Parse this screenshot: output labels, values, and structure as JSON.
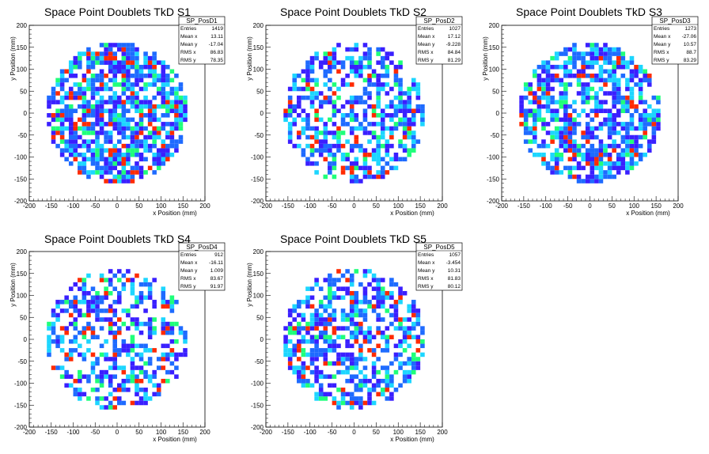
{
  "chart_data": [
    {
      "type": "heatmap",
      "title": "Space Point Doublets TkD S1",
      "xlabel": "x Position (mm)",
      "ylabel": "y Position (mm)",
      "xlim": [
        -200,
        200
      ],
      "ylim": [
        -200,
        200
      ],
      "xticks": [
        -200,
        -150,
        -100,
        -50,
        0,
        50,
        100,
        150,
        200
      ],
      "yticks": [
        -200,
        -150,
        -100,
        -50,
        0,
        50,
        100,
        150,
        200
      ],
      "stats": {
        "name": "SP_PosD1",
        "rows": [
          {
            "label": "Entries",
            "value": "1419"
          },
          {
            "label": "Mean x",
            "value": "13.11"
          },
          {
            "label": "Mean y",
            "value": "-17.04"
          },
          {
            "label": "RMS x",
            "value": "86.83"
          },
          {
            "label": "RMS y",
            "value": "78.35"
          }
        ]
      },
      "occupancy": 0.72,
      "seed": 11,
      "bin_mm": 10,
      "radius_mm": 160
    },
    {
      "type": "heatmap",
      "title": "Space Point Doublets TkD S2",
      "xlabel": "x Position (mm)",
      "ylabel": "y Position (mm)",
      "xlim": [
        -200,
        200
      ],
      "ylim": [
        -200,
        200
      ],
      "xticks": [
        -200,
        -150,
        -100,
        -50,
        0,
        50,
        100,
        150,
        200
      ],
      "yticks": [
        -200,
        -150,
        -100,
        -50,
        0,
        50,
        100,
        150,
        200
      ],
      "stats": {
        "name": "SP_PosD2",
        "rows": [
          {
            "label": "Entries",
            "value": "1027"
          },
          {
            "label": "Mean x",
            "value": "17.12"
          },
          {
            "label": "Mean y",
            "value": "-9.228"
          },
          {
            "label": "RMS x",
            "value": "84.84"
          },
          {
            "label": "RMS y",
            "value": "81.29"
          }
        ]
      },
      "occupancy": 0.55,
      "seed": 23,
      "bin_mm": 10,
      "radius_mm": 160
    },
    {
      "type": "heatmap",
      "title": "Space Point Doublets TkD S3",
      "xlabel": "x Position (mm)",
      "ylabel": "y Position (mm)",
      "xlim": [
        -200,
        200
      ],
      "ylim": [
        -200,
        200
      ],
      "xticks": [
        -200,
        -150,
        -100,
        -50,
        0,
        50,
        100,
        150,
        200
      ],
      "yticks": [
        -200,
        -150,
        -100,
        -50,
        0,
        50,
        100,
        150,
        200
      ],
      "stats": {
        "name": "SP_PosD3",
        "rows": [
          {
            "label": "Entries",
            "value": "1273"
          },
          {
            "label": "Mean x",
            "value": "-27.06"
          },
          {
            "label": "Mean y",
            "value": "10.57"
          },
          {
            "label": "RMS x",
            "value": "88.7"
          },
          {
            "label": "RMS y",
            "value": "83.29"
          }
        ]
      },
      "occupancy": 0.66,
      "seed": 37,
      "bin_mm": 10,
      "radius_mm": 160
    },
    {
      "type": "heatmap",
      "title": "Space Point Doublets TkD S4",
      "xlabel": "x Position (mm)",
      "ylabel": "y Position (mm)",
      "xlim": [
        -200,
        200
      ],
      "ylim": [
        -200,
        200
      ],
      "xticks": [
        -200,
        -150,
        -100,
        -50,
        0,
        50,
        100,
        150,
        200
      ],
      "yticks": [
        -200,
        -150,
        -100,
        -50,
        0,
        50,
        100,
        150,
        200
      ],
      "stats": {
        "name": "SP_PosD4",
        "rows": [
          {
            "label": "Entries",
            "value": "912"
          },
          {
            "label": "Mean x",
            "value": "-16.11"
          },
          {
            "label": "Mean y",
            "value": "1.009"
          },
          {
            "label": "RMS x",
            "value": "83.67"
          },
          {
            "label": "RMS y",
            "value": "91.97"
          }
        ]
      },
      "occupancy": 0.48,
      "seed": 41,
      "bin_mm": 10,
      "radius_mm": 160
    },
    {
      "type": "heatmap",
      "title": "Space Point Doublets TkD S5",
      "xlabel": "x Position (mm)",
      "ylabel": "y Position (mm)",
      "xlim": [
        -200,
        200
      ],
      "ylim": [
        -200,
        200
      ],
      "xticks": [
        -200,
        -150,
        -100,
        -50,
        0,
        50,
        100,
        150,
        200
      ],
      "yticks": [
        -200,
        -150,
        -100,
        -50,
        0,
        50,
        100,
        150,
        200
      ],
      "stats": {
        "name": "SP_PosD5",
        "rows": [
          {
            "label": "Entries",
            "value": "1057"
          },
          {
            "label": "Mean x",
            "value": "-3.454"
          },
          {
            "label": "Mean y",
            "value": "10.31"
          },
          {
            "label": "RMS x",
            "value": "81.83"
          },
          {
            "label": "RMS y",
            "value": "80.12"
          }
        ]
      },
      "occupancy": 0.56,
      "seed": 53,
      "bin_mm": 10,
      "radius_mm": 160
    }
  ],
  "palette": {
    "low": "#3a1fff",
    "mid1": "#1e6bff",
    "mid2": "#1cd6ff",
    "mid3": "#1fff7a",
    "high": "#ff2a00",
    "axis": "#000000",
    "background": "#ffffff"
  }
}
